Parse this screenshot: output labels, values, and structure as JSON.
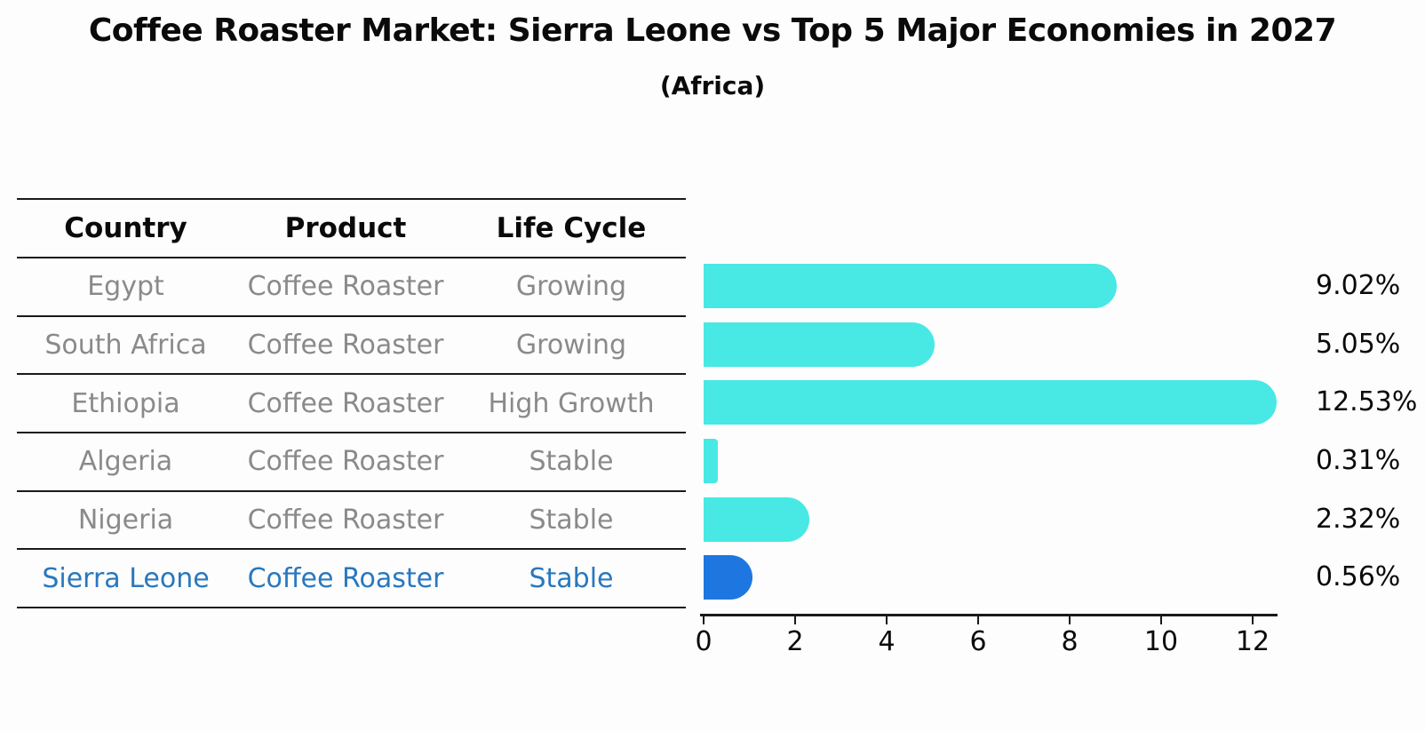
{
  "title": "Coffee Roaster Market: Sierra Leone vs Top 5 Major Economies in 2027",
  "subtitle": "(Africa)",
  "table": {
    "headers": [
      "Country",
      "Product",
      "Life Cycle"
    ],
    "rows": [
      {
        "country": "Egypt",
        "product": "Coffee Roaster",
        "life_cycle": "Growing",
        "highlight": false
      },
      {
        "country": "South Africa",
        "product": "Coffee Roaster",
        "life_cycle": "Growing",
        "highlight": false
      },
      {
        "country": "Ethiopia",
        "product": "Coffee Roaster",
        "life_cycle": "High Growth",
        "highlight": false
      },
      {
        "country": "Algeria",
        "product": "Coffee Roaster",
        "life_cycle": "Stable",
        "highlight": false
      },
      {
        "country": "Nigeria",
        "product": "Coffee Roaster",
        "life_cycle": "Stable",
        "highlight": false
      },
      {
        "country": "Sierra Leone",
        "product": "Coffee Roaster",
        "life_cycle": "Stable",
        "highlight": true
      }
    ]
  },
  "chart_data": {
    "type": "bar",
    "orientation": "horizontal",
    "title": "Coffee Roaster Market: Sierra Leone vs Top 5 Major Economies in 2027",
    "subtitle": "(Africa)",
    "categories": [
      "Egypt",
      "South Africa",
      "Ethiopia",
      "Algeria",
      "Nigeria",
      "Sierra Leone"
    ],
    "values": [
      9.02,
      5.05,
      12.53,
      0.31,
      2.32,
      0.56
    ],
    "labels": [
      "9.02%",
      "5.05%",
      "12.53%",
      "0.31%",
      "2.32%",
      "0.56%"
    ],
    "value_suffix": "%",
    "x_ticks": [
      0,
      2,
      4,
      6,
      8,
      10,
      12
    ],
    "xlim": [
      0,
      12.8
    ],
    "grid": false,
    "legend": false,
    "highlight_index": 5,
    "bar_color": "#48e8e4",
    "highlight_color": "#1e77e0"
  },
  "colors": {
    "bar": "#48e8e4",
    "highlight_bar": "#1e77e0",
    "highlight_text": "#2878be",
    "muted_text": "#8a8a8a",
    "heading_text": "#0a0a0a",
    "line": "#1a1a1a",
    "background": "#fdfdfd"
  }
}
